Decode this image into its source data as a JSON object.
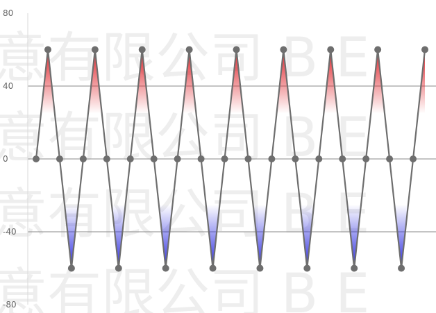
{
  "chart_data": {
    "type": "line",
    "x": [
      0,
      1,
      2,
      3,
      4,
      5,
      6,
      7,
      8,
      9,
      10,
      11,
      12,
      13,
      14,
      15,
      16,
      17,
      18,
      19,
      20,
      21,
      22,
      23,
      24,
      25,
      26,
      27,
      28,
      29,
      30,
      31,
      32,
      33
    ],
    "series": [
      {
        "values": [
          0,
          60,
          0,
          -60,
          0,
          60,
          0,
          -60,
          0,
          60,
          0,
          -60,
          0,
          60,
          0,
          -60,
          0,
          60,
          0,
          -60,
          0,
          60,
          0,
          -60,
          0,
          60,
          0,
          -60,
          0,
          60,
          0,
          -60,
          0,
          60
        ],
        "line_color": "#6e6e6e",
        "marker_color": "#6e6e6e",
        "positive_fill_color": "#e0232a",
        "negative_fill_color": "#2a2ae0"
      }
    ],
    "ylim": [
      -80,
      80
    ],
    "yticks": [
      "80",
      "40",
      "0",
      "-40",
      "-80"
    ],
    "grid": true,
    "title": "",
    "xlabel": "",
    "ylabel": ""
  },
  "watermark": {
    "rows": [
      "意有限公司 B E",
      "意有限公司 B E",
      "意有限公司 B E",
      "意有限公司 B E"
    ]
  }
}
